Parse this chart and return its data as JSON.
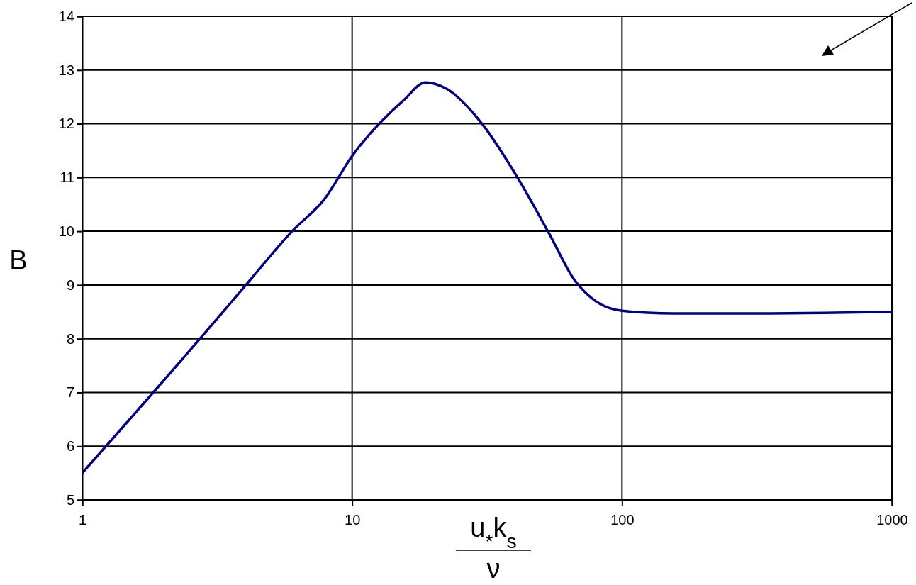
{
  "chart_data": {
    "type": "line",
    "xlabel": "u$_{*}$k$_{s}$\nν",
    "ylabel": "B",
    "log": "x",
    "grid": true,
    "marker": "none",
    "line_style": "solid",
    "xlim": [
      1,
      1000
    ],
    "xticks": [
      1,
      10,
      100,
      1000
    ],
    "ylim": [
      5,
      14
    ],
    "yticks": [
      5,
      6,
      7,
      8,
      9,
      10,
      11,
      12,
      13,
      14
    ],
    "series": [
      {
        "color": "#000080",
        "x": [
          1,
          2.73,
          4.04,
          5.99,
          7.9,
          10,
          15.6,
          18.7,
          22.4,
          30.3,
          41,
          53.8,
          66.5,
          79.8,
          100,
          155,
          284,
          1000
        ],
        "values": [
          5.5,
          8.0,
          9.0,
          10.0,
          10.6,
          11.4,
          12.45,
          12.77,
          12.65,
          12.0,
          11.0,
          9.95,
          9.1,
          8.7,
          8.52,
          8.47,
          8.47,
          8.5
        ]
      }
    ]
  }
}
